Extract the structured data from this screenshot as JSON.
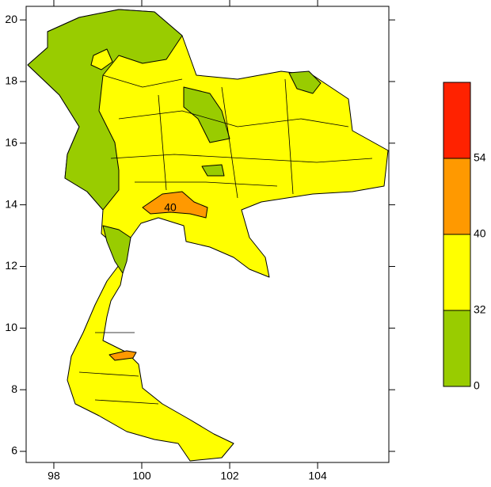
{
  "map": {
    "xlim": [
      97.37,
      105.62
    ],
    "ylim": [
      5.64,
      20.44
    ],
    "xticks": [
      98,
      100,
      102,
      104
    ],
    "yticks": [
      6,
      8,
      10,
      12,
      14,
      16,
      18,
      20
    ],
    "contour_label": "40",
    "colorbar": {
      "levels": [
        0,
        32,
        40,
        54
      ],
      "colors": [
        "#99cc00",
        "#ffff00",
        "#ff9900",
        "#ff2200"
      ]
    }
  }
}
